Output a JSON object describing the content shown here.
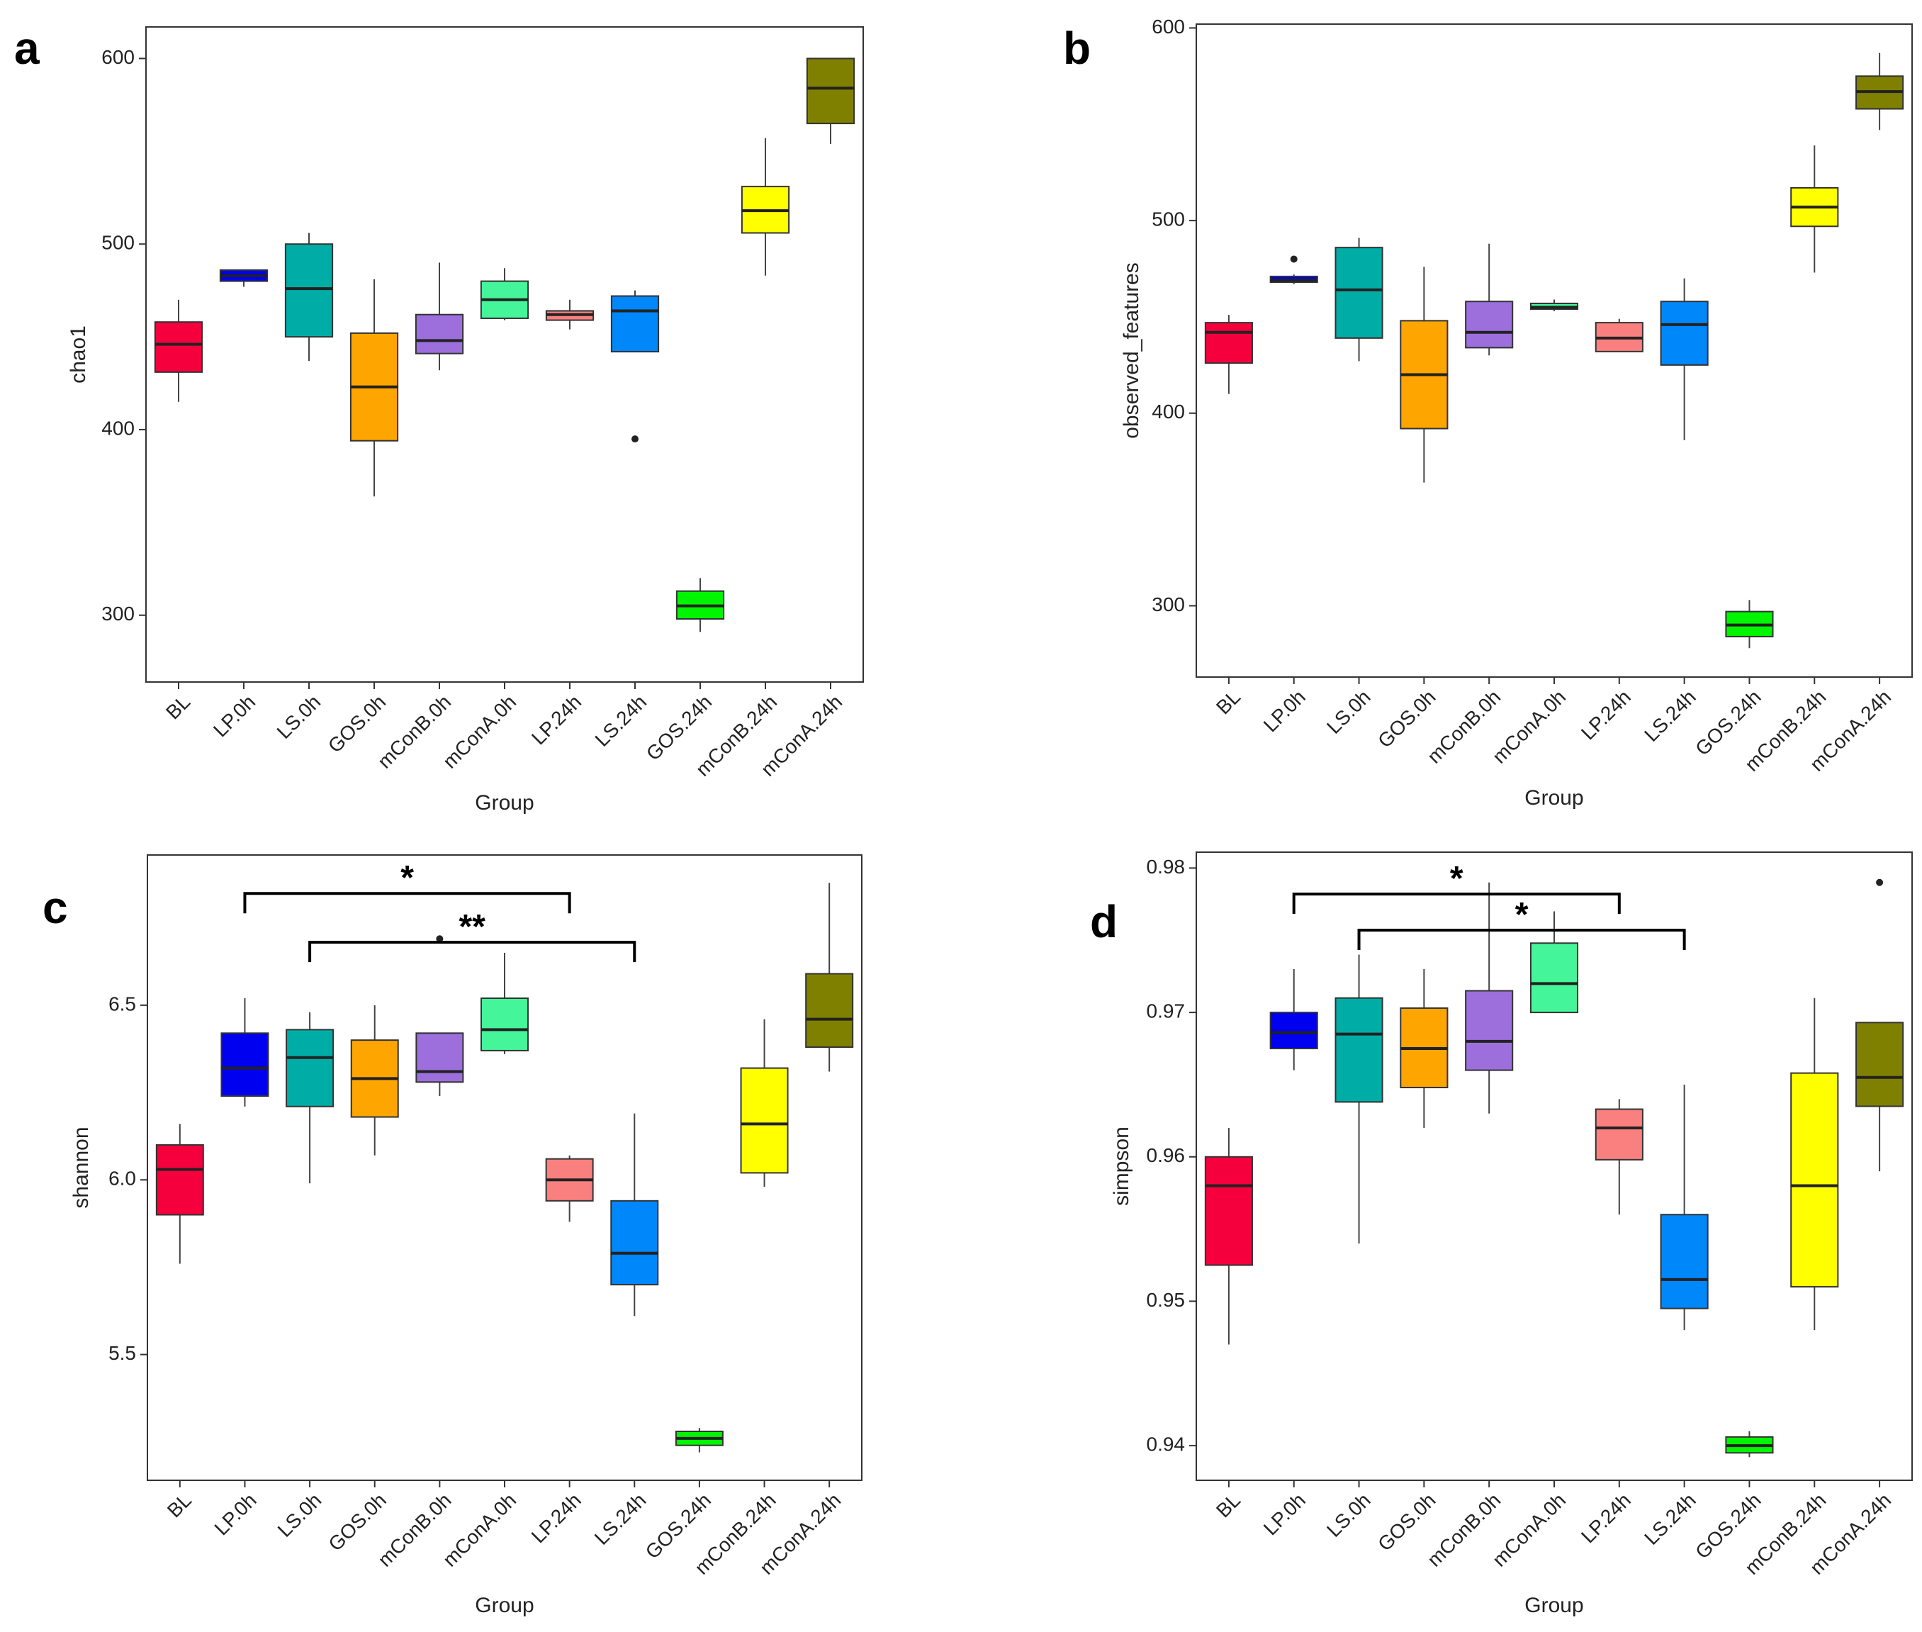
{
  "figure": {
    "colors": {
      "BL": "#F5003C",
      "LP.0h": "#0000F0",
      "LS.0h": "#00ADA6",
      "GOS.0h": "#FFA500",
      "mConB.0h": "#9C6FDD",
      "mConA.0h": "#45F59A",
      "LP.24h": "#FA8080",
      "LS.24h": "#0087FA",
      "GOS.24h": "#00F500",
      "mConB.24h": "#FFFF00",
      "mConA.24h": "#808000"
    }
  },
  "chart_data": [
    {
      "panel": "a",
      "type": "box",
      "xlabel": "Group",
      "ylabel": "chao1",
      "ylim": [
        264,
        617
      ],
      "yticks": [
        300,
        400,
        500,
        600
      ],
      "categories": [
        "BL",
        "LP.0h",
        "LS.0h",
        "GOS.0h",
        "mConB.0h",
        "mConA.0h",
        "LP.24h",
        "LS.24h",
        "GOS.24h",
        "mConB.24h",
        "mConA.24h"
      ],
      "boxes": [
        {
          "min": 415,
          "q1": 431,
          "median": 446,
          "q3": 458,
          "max": 470,
          "outliers": []
        },
        {
          "min": 477,
          "q1": 480,
          "median": 483,
          "q3": 486,
          "max": 486,
          "outliers": []
        },
        {
          "min": 437,
          "q1": 450,
          "median": 476,
          "q3": 500,
          "max": 506,
          "outliers": []
        },
        {
          "min": 364,
          "q1": 394,
          "median": 423,
          "q3": 452,
          "max": 481,
          "outliers": []
        },
        {
          "min": 432,
          "q1": 441,
          "median": 448,
          "q3": 462,
          "max": 490,
          "outliers": []
        },
        {
          "min": 459,
          "q1": 460,
          "median": 470,
          "q3": 480,
          "max": 487,
          "outliers": []
        },
        {
          "min": 454,
          "q1": 459,
          "median": 462,
          "q3": 464,
          "max": 470,
          "outliers": []
        },
        {
          "min": 442,
          "q1": 442,
          "median": 464,
          "q3": 472,
          "max": 475,
          "outliers": [
            395
          ]
        },
        {
          "min": 291,
          "q1": 298,
          "median": 305,
          "q3": 313,
          "max": 320,
          "outliers": []
        },
        {
          "min": 483,
          "q1": 506,
          "median": 518,
          "q3": 531,
          "max": 557,
          "outliers": []
        },
        {
          "min": 554,
          "q1": 565,
          "median": 584,
          "q3": 600,
          "max": 600,
          "outliers": []
        }
      ],
      "significance": []
    },
    {
      "panel": "b",
      "type": "box",
      "xlabel": "Group",
      "ylabel": "observed_features",
      "ylim": [
        263,
        602
      ],
      "yticks": [
        300,
        400,
        500,
        600
      ],
      "categories": [
        "BL",
        "LP.0h",
        "LS.0h",
        "GOS.0h",
        "mConB.0h",
        "mConA.0h",
        "LP.24h",
        "LS.24h",
        "GOS.24h",
        "mConB.24h",
        "mConA.24h"
      ],
      "boxes": [
        {
          "min": 410,
          "q1": 426,
          "median": 442,
          "q3": 447,
          "max": 451,
          "outliers": []
        },
        {
          "min": 467,
          "q1": 468,
          "median": 469,
          "q3": 471,
          "max": 472,
          "outliers": [
            480
          ]
        },
        {
          "min": 427,
          "q1": 439,
          "median": 464,
          "q3": 486,
          "max": 491,
          "outliers": []
        },
        {
          "min": 364,
          "q1": 392,
          "median": 420,
          "q3": 448,
          "max": 476,
          "outliers": []
        },
        {
          "min": 430,
          "q1": 434,
          "median": 442,
          "q3": 458,
          "max": 488,
          "outliers": []
        },
        {
          "min": 453,
          "q1": 454,
          "median": 455,
          "q3": 457,
          "max": 459,
          "outliers": []
        },
        {
          "min": 432,
          "q1": 432,
          "median": 439,
          "q3": 447,
          "max": 449,
          "outliers": []
        },
        {
          "min": 386,
          "q1": 425,
          "median": 446,
          "q3": 458,
          "max": 470,
          "outliers": []
        },
        {
          "min": 278,
          "q1": 284,
          "median": 290,
          "q3": 297,
          "max": 303,
          "outliers": []
        },
        {
          "min": 473,
          "q1": 497,
          "median": 507,
          "q3": 517,
          "max": 539,
          "outliers": []
        },
        {
          "min": 547,
          "q1": 558,
          "median": 567,
          "q3": 575,
          "max": 587,
          "outliers": []
        }
      ],
      "significance": []
    },
    {
      "panel": "c",
      "type": "box",
      "xlabel": "Group",
      "ylabel": "shannon",
      "ylim": [
        5.14,
        6.93
      ],
      "yticks": [
        5.5,
        6.0,
        6.5
      ],
      "categories": [
        "BL",
        "LP.0h",
        "LS.0h",
        "GOS.0h",
        "mConB.0h",
        "mConA.0h",
        "LP.24h",
        "LS.24h",
        "GOS.24h",
        "mConB.24h",
        "mConA.24h"
      ],
      "boxes": [
        {
          "min": 5.76,
          "q1": 5.9,
          "median": 6.03,
          "q3": 6.1,
          "max": 6.16,
          "outliers": []
        },
        {
          "min": 6.21,
          "q1": 6.24,
          "median": 6.32,
          "q3": 6.42,
          "max": 6.52,
          "outliers": []
        },
        {
          "min": 5.99,
          "q1": 6.21,
          "median": 6.35,
          "q3": 6.43,
          "max": 6.48,
          "outliers": []
        },
        {
          "min": 6.07,
          "q1": 6.18,
          "median": 6.29,
          "q3": 6.4,
          "max": 6.5,
          "outliers": []
        },
        {
          "min": 6.24,
          "q1": 6.28,
          "median": 6.31,
          "q3": 6.42,
          "max": 6.42,
          "outliers": [
            6.69
          ]
        },
        {
          "min": 6.36,
          "q1": 6.37,
          "median": 6.43,
          "q3": 6.52,
          "max": 6.65,
          "outliers": []
        },
        {
          "min": 5.88,
          "q1": 5.94,
          "median": 6.0,
          "q3": 6.06,
          "max": 6.07,
          "outliers": []
        },
        {
          "min": 5.61,
          "q1": 5.7,
          "median": 5.79,
          "q3": 5.94,
          "max": 6.19,
          "outliers": []
        },
        {
          "min": 5.22,
          "q1": 5.24,
          "median": 5.26,
          "q3": 5.28,
          "max": 5.29,
          "outliers": []
        },
        {
          "min": 5.98,
          "q1": 6.02,
          "median": 6.16,
          "q3": 6.32,
          "max": 6.46,
          "outliers": []
        },
        {
          "min": 6.31,
          "q1": 6.38,
          "median": 6.46,
          "q3": 6.59,
          "max": 6.85,
          "outliers": []
        }
      ],
      "significance": [
        {
          "from": 1,
          "to": 6,
          "y": 6.82,
          "label": "*"
        },
        {
          "from": 2,
          "to": 7,
          "y": 6.68,
          "label": "**"
        }
      ]
    },
    {
      "panel": "d",
      "type": "box",
      "xlabel": "Group",
      "ylabel": "simpson",
      "ylim": [
        0.9376,
        0.9811
      ],
      "yticks": [
        0.94,
        0.95,
        0.96,
        0.97,
        0.98
      ],
      "categories": [
        "BL",
        "LP.0h",
        "LS.0h",
        "GOS.0h",
        "mConB.0h",
        "mConA.0h",
        "LP.24h",
        "LS.24h",
        "GOS.24h",
        "mConB.24h",
        "mConA.24h"
      ],
      "boxes": [
        {
          "min": 0.947,
          "q1": 0.9525,
          "median": 0.958,
          "q3": 0.96,
          "max": 0.962,
          "outliers": []
        },
        {
          "min": 0.966,
          "q1": 0.9675,
          "median": 0.9686,
          "q3": 0.97,
          "max": 0.973,
          "outliers": []
        },
        {
          "min": 0.954,
          "q1": 0.9638,
          "median": 0.9685,
          "q3": 0.971,
          "max": 0.974,
          "outliers": []
        },
        {
          "min": 0.962,
          "q1": 0.9648,
          "median": 0.9675,
          "q3": 0.9703,
          "max": 0.973,
          "outliers": []
        },
        {
          "min": 0.963,
          "q1": 0.966,
          "median": 0.968,
          "q3": 0.9715,
          "max": 0.979,
          "outliers": []
        },
        {
          "min": 0.97,
          "q1": 0.97,
          "median": 0.972,
          "q3": 0.9748,
          "max": 0.977,
          "outliers": []
        },
        {
          "min": 0.956,
          "q1": 0.9598,
          "median": 0.962,
          "q3": 0.9633,
          "max": 0.964,
          "outliers": []
        },
        {
          "min": 0.948,
          "q1": 0.9495,
          "median": 0.9515,
          "q3": 0.956,
          "max": 0.965,
          "outliers": []
        },
        {
          "min": 0.9392,
          "q1": 0.9395,
          "median": 0.94,
          "q3": 0.9406,
          "max": 0.941,
          "outliers": []
        },
        {
          "min": 0.948,
          "q1": 0.951,
          "median": 0.958,
          "q3": 0.9658,
          "max": 0.971,
          "outliers": []
        },
        {
          "min": 0.959,
          "q1": 0.9635,
          "median": 0.9655,
          "q3": 0.9693,
          "max": 0.9693,
          "outliers": [
            0.979
          ]
        }
      ],
      "significance": [
        {
          "from": 1,
          "to": 6,
          "y": 0.9782,
          "label": "*"
        },
        {
          "from": 2,
          "to": 7,
          "y": 0.9757,
          "label": "*"
        }
      ]
    }
  ]
}
